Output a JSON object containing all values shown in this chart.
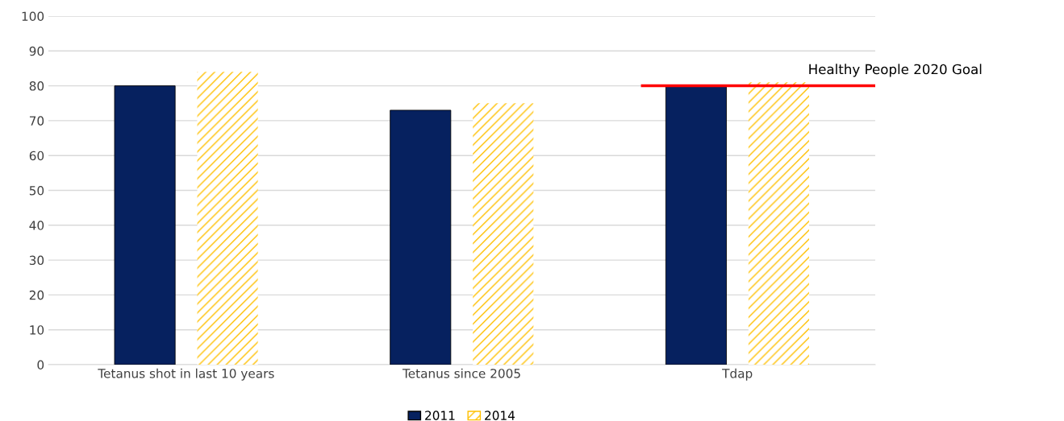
{
  "chart_data": {
    "type": "bar",
    "categories": [
      "Tetanus shot in last 10 years",
      "Tetanus since 2005",
      "Tdap"
    ],
    "series": [
      {
        "name": "2011",
        "color": "#06215f",
        "values": [
          80,
          73,
          80
        ]
      },
      {
        "name": "2014",
        "color": "#ffc000",
        "values": [
          84,
          75,
          81
        ]
      }
    ],
    "ylim": [
      0,
      100
    ],
    "yticks": [
      0,
      10,
      20,
      30,
      40,
      50,
      60,
      70,
      80,
      90,
      100
    ],
    "grid": "y",
    "legend": "bottom",
    "ref_lines": [
      {
        "axis": "y",
        "value": 80,
        "label": "Healthy People 2020 Goal",
        "color": "#ff0000"
      }
    ]
  }
}
